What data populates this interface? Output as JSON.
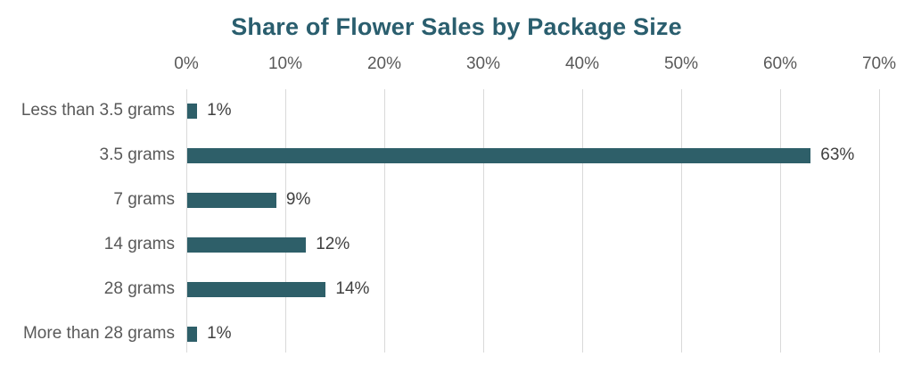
{
  "chart_data": {
    "type": "bar",
    "orientation": "horizontal",
    "title": "Share of Flower Sales by Package Size",
    "categories": [
      "Less than 3.5 grams",
      "3.5 grams",
      "7 grams",
      "14 grams",
      "28 grams",
      "More than 28 grams"
    ],
    "values": [
      1,
      63,
      9,
      12,
      14,
      1
    ],
    "value_labels": [
      "1%",
      "63%",
      "9%",
      "12%",
      "14%",
      "1%"
    ],
    "x_ticks": [
      0,
      10,
      20,
      30,
      40,
      50,
      60,
      70
    ],
    "x_tick_labels": [
      "0%",
      "10%",
      "20%",
      "30%",
      "40%",
      "50%",
      "60%",
      "70%"
    ],
    "xlim": [
      0,
      70
    ],
    "grid": true,
    "legend": false,
    "axis_position": "top",
    "xlabel": "",
    "ylabel": ""
  },
  "colors": {
    "title": "#2a5e6e",
    "bar": "#2e5f69",
    "gridline": "#d9d9d9",
    "axis_label": "#595959",
    "category_label": "#595959",
    "value_label": "#404040",
    "background": "#ffffff"
  }
}
